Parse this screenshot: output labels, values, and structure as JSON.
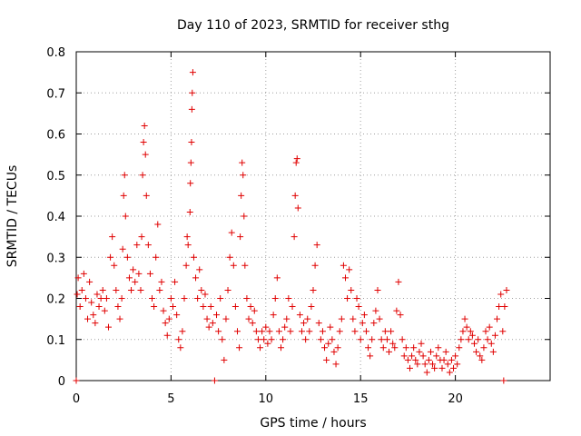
{
  "chart_data": {
    "type": "scatter",
    "title": "Day 110 of 2023, SRMTID for receiver sthg",
    "xlabel": "GPS time / hours",
    "ylabel": "SRMTID / TECUs",
    "xlim": [
      0,
      25
    ],
    "ylim": [
      0,
      0.8
    ],
    "x_ticks": [
      0,
      5,
      10,
      15,
      20
    ],
    "y_ticks": [
      0,
      0.1,
      0.2,
      0.3,
      0.4,
      0.5,
      0.6,
      0.7,
      0.8
    ],
    "x_tick_labels": [
      "0",
      "5",
      "10",
      "15",
      "20"
    ],
    "y_tick_labels": [
      "0",
      "0.1",
      "0.2",
      "0.3",
      "0.4",
      "0.5",
      "0.6",
      "0.7",
      "0.8"
    ],
    "grid": true,
    "marker": "+",
    "color": "#e00000",
    "series": [
      {
        "name": "SRMTID",
        "points": [
          [
            0.0,
            0.0
          ],
          [
            0.05,
            0.21
          ],
          [
            0.1,
            0.25
          ],
          [
            0.2,
            0.18
          ],
          [
            0.3,
            0.22
          ],
          [
            0.4,
            0.26
          ],
          [
            0.5,
            0.2
          ],
          [
            0.6,
            0.15
          ],
          [
            0.7,
            0.24
          ],
          [
            0.8,
            0.19
          ],
          [
            0.9,
            0.16
          ],
          [
            1.0,
            0.14
          ],
          [
            1.1,
            0.21
          ],
          [
            1.2,
            0.18
          ],
          [
            1.3,
            0.2
          ],
          [
            1.4,
            0.22
          ],
          [
            1.5,
            0.17
          ],
          [
            1.6,
            0.2
          ],
          [
            1.7,
            0.13
          ],
          [
            1.8,
            0.3
          ],
          [
            1.9,
            0.35
          ],
          [
            2.0,
            0.28
          ],
          [
            2.1,
            0.22
          ],
          [
            2.2,
            0.18
          ],
          [
            2.3,
            0.15
          ],
          [
            2.4,
            0.2
          ],
          [
            2.45,
            0.32
          ],
          [
            2.5,
            0.45
          ],
          [
            2.55,
            0.5
          ],
          [
            2.6,
            0.4
          ],
          [
            2.7,
            0.3
          ],
          [
            2.8,
            0.25
          ],
          [
            2.9,
            0.22
          ],
          [
            3.0,
            0.27
          ],
          [
            3.1,
            0.24
          ],
          [
            3.2,
            0.33
          ],
          [
            3.3,
            0.26
          ],
          [
            3.4,
            0.22
          ],
          [
            3.45,
            0.35
          ],
          [
            3.5,
            0.5
          ],
          [
            3.55,
            0.58
          ],
          [
            3.6,
            0.62
          ],
          [
            3.65,
            0.55
          ],
          [
            3.7,
            0.45
          ],
          [
            3.8,
            0.33
          ],
          [
            3.9,
            0.26
          ],
          [
            4.0,
            0.2
          ],
          [
            4.1,
            0.18
          ],
          [
            4.2,
            0.3
          ],
          [
            4.3,
            0.38
          ],
          [
            4.4,
            0.22
          ],
          [
            4.5,
            0.24
          ],
          [
            4.6,
            0.17
          ],
          [
            4.7,
            0.14
          ],
          [
            4.8,
            0.11
          ],
          [
            4.9,
            0.15
          ],
          [
            5.0,
            0.2
          ],
          [
            5.1,
            0.18
          ],
          [
            5.2,
            0.24
          ],
          [
            5.3,
            0.16
          ],
          [
            5.4,
            0.1
          ],
          [
            5.5,
            0.08
          ],
          [
            5.6,
            0.12
          ],
          [
            5.7,
            0.2
          ],
          [
            5.8,
            0.28
          ],
          [
            5.85,
            0.35
          ],
          [
            5.9,
            0.33
          ],
          [
            6.0,
            0.41
          ],
          [
            6.02,
            0.48
          ],
          [
            6.05,
            0.53
          ],
          [
            6.08,
            0.58
          ],
          [
            6.1,
            0.66
          ],
          [
            6.12,
            0.7
          ],
          [
            6.15,
            0.75
          ],
          [
            6.2,
            0.3
          ],
          [
            6.3,
            0.25
          ],
          [
            6.4,
            0.2
          ],
          [
            6.5,
            0.27
          ],
          [
            6.6,
            0.22
          ],
          [
            6.7,
            0.18
          ],
          [
            6.8,
            0.21
          ],
          [
            6.9,
            0.15
          ],
          [
            7.0,
            0.13
          ],
          [
            7.1,
            0.18
          ],
          [
            7.2,
            0.14
          ],
          [
            7.3,
            0.0
          ],
          [
            7.4,
            0.16
          ],
          [
            7.5,
            0.12
          ],
          [
            7.6,
            0.2
          ],
          [
            7.7,
            0.1
          ],
          [
            7.8,
            0.05
          ],
          [
            7.9,
            0.15
          ],
          [
            8.0,
            0.22
          ],
          [
            8.1,
            0.3
          ],
          [
            8.2,
            0.36
          ],
          [
            8.3,
            0.28
          ],
          [
            8.4,
            0.18
          ],
          [
            8.5,
            0.12
          ],
          [
            8.6,
            0.08
          ],
          [
            8.65,
            0.35
          ],
          [
            8.7,
            0.45
          ],
          [
            8.75,
            0.53
          ],
          [
            8.8,
            0.5
          ],
          [
            8.85,
            0.4
          ],
          [
            8.9,
            0.28
          ],
          [
            9.0,
            0.2
          ],
          [
            9.1,
            0.15
          ],
          [
            9.2,
            0.18
          ],
          [
            9.3,
            0.14
          ],
          [
            9.4,
            0.17
          ],
          [
            9.5,
            0.12
          ],
          [
            9.6,
            0.1
          ],
          [
            9.7,
            0.08
          ],
          [
            9.8,
            0.12
          ],
          [
            9.9,
            0.1
          ],
          [
            10.0,
            0.13
          ],
          [
            10.1,
            0.09
          ],
          [
            10.2,
            0.12
          ],
          [
            10.3,
            0.1
          ],
          [
            10.4,
            0.16
          ],
          [
            10.5,
            0.2
          ],
          [
            10.6,
            0.25
          ],
          [
            10.7,
            0.12
          ],
          [
            10.8,
            0.08
          ],
          [
            10.9,
            0.1
          ],
          [
            11.0,
            0.13
          ],
          [
            11.1,
            0.15
          ],
          [
            11.2,
            0.2
          ],
          [
            11.3,
            0.12
          ],
          [
            11.4,
            0.18
          ],
          [
            11.5,
            0.35
          ],
          [
            11.55,
            0.45
          ],
          [
            11.6,
            0.53
          ],
          [
            11.65,
            0.54
          ],
          [
            11.7,
            0.42
          ],
          [
            11.8,
            0.16
          ],
          [
            11.9,
            0.12
          ],
          [
            12.0,
            0.14
          ],
          [
            12.1,
            0.1
          ],
          [
            12.2,
            0.15
          ],
          [
            12.3,
            0.12
          ],
          [
            12.4,
            0.18
          ],
          [
            12.5,
            0.22
          ],
          [
            12.6,
            0.28
          ],
          [
            12.7,
            0.33
          ],
          [
            12.8,
            0.14
          ],
          [
            12.9,
            0.1
          ],
          [
            13.0,
            0.12
          ],
          [
            13.1,
            0.08
          ],
          [
            13.2,
            0.05
          ],
          [
            13.3,
            0.09
          ],
          [
            13.4,
            0.13
          ],
          [
            13.5,
            0.1
          ],
          [
            13.6,
            0.07
          ],
          [
            13.7,
            0.04
          ],
          [
            13.8,
            0.08
          ],
          [
            13.9,
            0.12
          ],
          [
            14.0,
            0.15
          ],
          [
            14.1,
            0.28
          ],
          [
            14.2,
            0.25
          ],
          [
            14.3,
            0.2
          ],
          [
            14.4,
            0.27
          ],
          [
            14.5,
            0.22
          ],
          [
            14.6,
            0.15
          ],
          [
            14.7,
            0.12
          ],
          [
            14.8,
            0.2
          ],
          [
            14.9,
            0.18
          ],
          [
            15.0,
            0.1
          ],
          [
            15.1,
            0.14
          ],
          [
            15.2,
            0.16
          ],
          [
            15.3,
            0.12
          ],
          [
            15.4,
            0.08
          ],
          [
            15.5,
            0.06
          ],
          [
            15.6,
            0.1
          ],
          [
            15.7,
            0.14
          ],
          [
            15.8,
            0.17
          ],
          [
            15.9,
            0.22
          ],
          [
            16.0,
            0.15
          ],
          [
            16.1,
            0.1
          ],
          [
            16.2,
            0.08
          ],
          [
            16.3,
            0.12
          ],
          [
            16.4,
            0.1
          ],
          [
            16.5,
            0.07
          ],
          [
            16.6,
            0.12
          ],
          [
            16.7,
            0.09
          ],
          [
            16.8,
            0.08
          ],
          [
            16.9,
            0.17
          ],
          [
            17.0,
            0.24
          ],
          [
            17.1,
            0.16
          ],
          [
            17.2,
            0.1
          ],
          [
            17.3,
            0.06
          ],
          [
            17.4,
            0.08
          ],
          [
            17.5,
            0.05
          ],
          [
            17.6,
            0.03
          ],
          [
            17.7,
            0.06
          ],
          [
            17.8,
            0.08
          ],
          [
            17.9,
            0.05
          ],
          [
            18.0,
            0.04
          ],
          [
            18.1,
            0.07
          ],
          [
            18.2,
            0.09
          ],
          [
            18.3,
            0.06
          ],
          [
            18.4,
            0.04
          ],
          [
            18.5,
            0.02
          ],
          [
            18.6,
            0.05
          ],
          [
            18.7,
            0.07
          ],
          [
            18.8,
            0.04
          ],
          [
            18.9,
            0.03
          ],
          [
            19.0,
            0.06
          ],
          [
            19.1,
            0.08
          ],
          [
            19.2,
            0.05
          ],
          [
            19.3,
            0.03
          ],
          [
            19.4,
            0.05
          ],
          [
            19.5,
            0.07
          ],
          [
            19.6,
            0.04
          ],
          [
            19.7,
            0.02
          ],
          [
            19.8,
            0.05
          ],
          [
            19.9,
            0.03
          ],
          [
            20.0,
            0.06
          ],
          [
            20.1,
            0.04
          ],
          [
            20.2,
            0.08
          ],
          [
            20.3,
            0.1
          ],
          [
            20.4,
            0.12
          ],
          [
            20.5,
            0.15
          ],
          [
            20.6,
            0.13
          ],
          [
            20.7,
            0.1
          ],
          [
            20.8,
            0.12
          ],
          [
            20.9,
            0.11
          ],
          [
            21.0,
            0.09
          ],
          [
            21.1,
            0.07
          ],
          [
            21.2,
            0.1
          ],
          [
            21.3,
            0.06
          ],
          [
            21.4,
            0.05
          ],
          [
            21.5,
            0.08
          ],
          [
            21.6,
            0.12
          ],
          [
            21.7,
            0.1
          ],
          [
            21.8,
            0.13
          ],
          [
            21.9,
            0.09
          ],
          [
            22.0,
            0.07
          ],
          [
            22.1,
            0.11
          ],
          [
            22.2,
            0.15
          ],
          [
            22.3,
            0.18
          ],
          [
            22.4,
            0.21
          ],
          [
            22.5,
            0.12
          ],
          [
            22.55,
            0.0
          ],
          [
            22.6,
            0.18
          ],
          [
            22.7,
            0.22
          ]
        ]
      }
    ]
  }
}
